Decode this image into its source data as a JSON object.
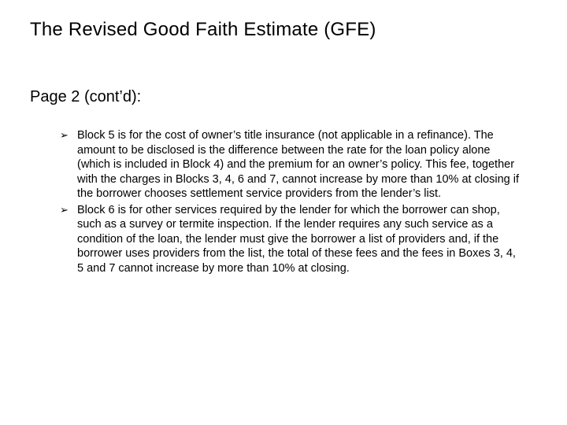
{
  "title": "The Revised Good Faith Estimate (GFE)",
  "subtitle": "Page 2 (cont’d):",
  "bullets": [
    "Block 5 is for the cost of owner’s title insurance (not applicable in a refinance). The amount to be disclosed is the difference between the rate for the loan policy alone (which is included in Block 4) and the premium for an owner’s policy. This fee, together with the charges in Blocks 3, 4, 6 and 7, cannot increase by more than 10% at closing if the borrower chooses settlement service providers from the lender’s list.",
    "Block 6 is for other services required by the lender for which the borrower can shop, such as a survey or termite inspection. If the lender requires any such service as a condition of the loan, the lender must give the borrower a list of providers and, if the borrower uses providers from the list, the total of these fees and the fees in Boxes 3, 4, 5 and 7 cannot increase by more than 10% at closing."
  ],
  "bullet_glyph": "➢",
  "colors": {
    "background": "#ffffff",
    "text": "#000000"
  },
  "fontsizes": {
    "title": 24,
    "subtitle": 20,
    "body": 14.5
  }
}
